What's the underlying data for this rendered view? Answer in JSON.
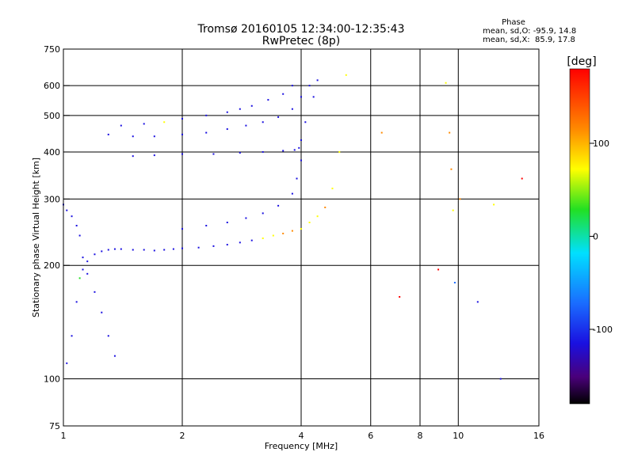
{
  "chart_data": {
    "type": "scatter",
    "title": "Tromsø 20160105 12:34:00-12:35:43",
    "subtitle": "RwPretec (8p)",
    "xlabel": "Frequency [MHz]",
    "ylabel": "Stationary phase Virtual Height [km]",
    "x_scale": "log",
    "y_scale": "log",
    "xlim": [
      1,
      16
    ],
    "ylim": [
      75,
      750
    ],
    "x_ticks": [
      1,
      2,
      4,
      6,
      8,
      10,
      16
    ],
    "x_tick_labels": [
      "1",
      "2",
      "4",
      "6",
      "8",
      "10",
      "16"
    ],
    "x_grid": [
      1,
      2,
      4,
      6,
      8,
      10,
      16
    ],
    "y_ticks": [
      75,
      100,
      200,
      300,
      400,
      500,
      600,
      750
    ],
    "y_tick_labels": [
      "75",
      "100",
      "200",
      "300",
      "400",
      "500",
      "600",
      "750"
    ],
    "y_grid": [
      100,
      200,
      300,
      400,
      500,
      600
    ],
    "grid": true,
    "phase_stats": {
      "heading": "Phase",
      "line_o": "mean, sd,O: -95.9, 14.8",
      "line_x": "mean, sd,X:  85.9, 17.8"
    },
    "colorbar": {
      "label": "[deg]",
      "range": [
        -180,
        180
      ],
      "ticks": [
        100,
        0,
        -100
      ],
      "tick_labels": [
        "100",
        "0",
        "-100"
      ]
    },
    "point_size": 2,
    "series": [
      {
        "x": [
          1.02,
          1.05,
          1.08,
          1.1,
          1.12,
          1.15,
          1.2,
          1.25,
          1.3,
          1.35,
          1.4,
          1.5,
          1.6,
          1.7,
          1.8,
          1.9,
          2.0,
          2.2,
          2.4,
          2.6,
          2.8,
          3.0,
          3.2,
          3.4,
          3.6,
          3.8,
          4.0,
          4.2,
          4.4,
          4.6,
          4.8,
          5.0
        ],
        "y": [
          110,
          130,
          160,
          185,
          195,
          205,
          214,
          218,
          220,
          221,
          221,
          220,
          220,
          219,
          220,
          221,
          222,
          223,
          225,
          227,
          230,
          233,
          236,
          240,
          243,
          247,
          250,
          260,
          270,
          285,
          320,
          400
        ],
        "phase": [
          -100,
          -110,
          -105,
          60,
          -95,
          -100,
          -100,
          -95,
          -100,
          -100,
          -95,
          -100,
          -90,
          -100,
          -95,
          -100,
          -100,
          -95,
          -90,
          -95,
          -90,
          -100,
          90,
          100,
          110,
          110,
          100,
          100,
          105,
          110,
          100,
          95
        ]
      },
      {
        "x": [
          1.5,
          1.7,
          2.0,
          2.4,
          2.8,
          3.2,
          3.6,
          3.85,
          3.95,
          4.0,
          4.1,
          4.3
        ],
        "y": [
          390,
          392,
          395,
          395,
          398,
          400,
          403,
          405,
          410,
          430,
          480,
          560
        ],
        "phase": [
          -100,
          -90,
          -100,
          -95,
          -100,
          -100,
          -105,
          -100,
          -95,
          -100,
          -100,
          -95
        ]
      },
      {
        "x": [
          2.0,
          2.3,
          2.6,
          2.9,
          3.2,
          3.5,
          3.8,
          3.9,
          4.0,
          4.2,
          4.4
        ],
        "y": [
          250,
          255,
          260,
          267,
          275,
          288,
          310,
          340,
          380,
          600,
          620
        ],
        "phase": [
          -100,
          -95,
          -100,
          -100,
          -95,
          -100,
          -100,
          -95,
          -100,
          -95,
          -100
        ]
      },
      {
        "x": [
          1.3,
          1.5,
          1.7,
          2.0,
          2.3,
          2.6,
          2.9,
          3.2,
          3.5,
          3.8,
          4.0
        ],
        "y": [
          445,
          440,
          440,
          445,
          450,
          460,
          470,
          480,
          495,
          520,
          560
        ],
        "phase": [
          -95,
          -100,
          -100,
          -90,
          -95,
          -100,
          -95,
          -100,
          -100,
          -95,
          -100
        ]
      },
      {
        "x": [
          1.4,
          1.6,
          1.8,
          2.0,
          2.3,
          2.6,
          2.8,
          3.0,
          3.3,
          3.6,
          3.8
        ],
        "y": [
          470,
          475,
          480,
          490,
          500,
          510,
          520,
          530,
          550,
          570,
          600
        ],
        "phase": [
          -100,
          -95,
          90,
          -100,
          -95,
          -100,
          -100,
          -95,
          -100,
          -100,
          -95
        ]
      },
      {
        "x": [
          1.0,
          1.02,
          1.05,
          1.08,
          1.1,
          1.12,
          1.15,
          1.2,
          1.25,
          1.3,
          1.35
        ],
        "y": [
          290,
          280,
          270,
          255,
          240,
          210,
          190,
          170,
          150,
          130,
          115
        ],
        "phase": [
          -100,
          -100,
          -95,
          -100,
          -90,
          -100,
          -95,
          -100,
          -100,
          -95,
          -100
        ]
      },
      {
        "x": [
          5.2,
          6.4,
          7.1,
          8.9,
          9.3,
          9.5,
          9.6,
          9.7,
          9.8,
          10.1,
          11.2,
          12.3,
          12.8,
          14.5
        ],
        "y": [
          640,
          450,
          165,
          195,
          610,
          450,
          360,
          280,
          180,
          300,
          160,
          290,
          100,
          340
        ],
        "phase": [
          100,
          140,
          150,
          160,
          100,
          120,
          110,
          90,
          -60,
          110,
          -100,
          90,
          -120,
          150
        ]
      }
    ]
  }
}
